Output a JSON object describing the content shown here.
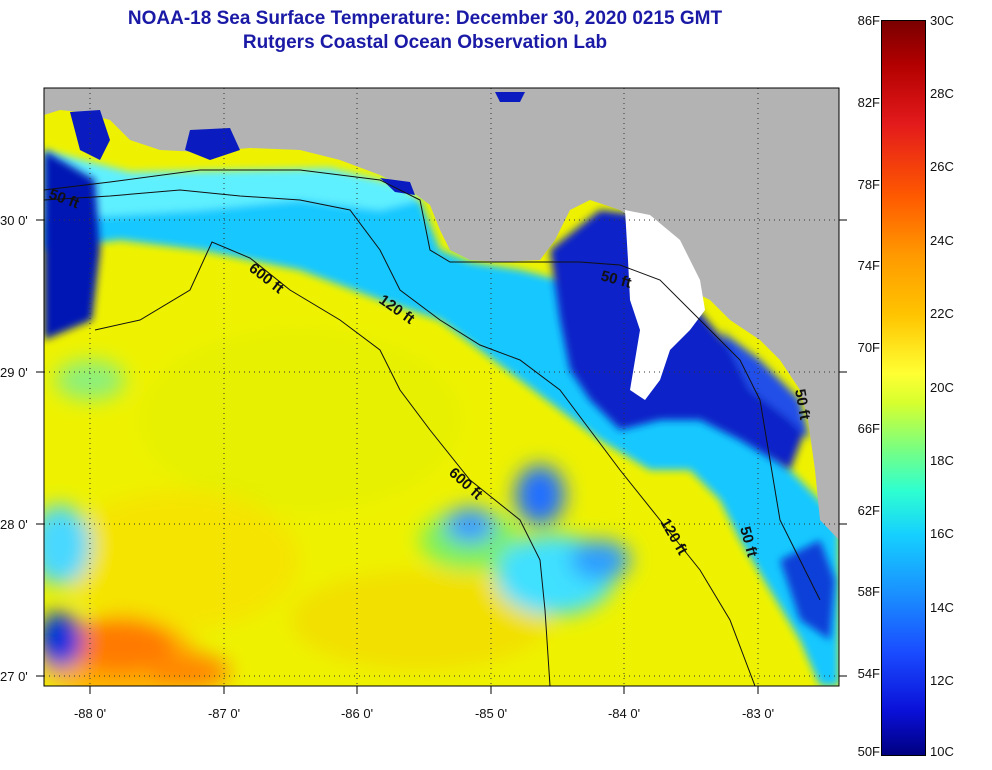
{
  "title": {
    "line1": "NOAA-18 Sea Surface Temperature:  December 30, 2020 0215 GMT",
    "line2": "Rutgers Coastal Ocean Observation Lab"
  },
  "map": {
    "lat_labels": [
      "30 0'",
      "29 0'",
      "28 0'",
      "27 0'"
    ],
    "lon_labels": [
      "-88 0'",
      "-87 0'",
      "-86 0'",
      "-85 0'",
      "-84 0'",
      "-83 0'"
    ],
    "contour_labels": [
      "50 ft",
      "600 ft",
      "120 ft",
      "50 ft",
      "600 ft",
      "120 ft",
      "50 ft",
      "50 ft"
    ],
    "colors": {
      "land": "#b3b3b3",
      "ocean_warm": "#f0f000",
      "shelf": "#19c8ff",
      "cold": "#0010b4",
      "cloud": "#ffffff",
      "hot": "#ff6a00"
    }
  },
  "colorbar": {
    "f_labels": [
      "86F",
      "82F",
      "78F",
      "74F",
      "70F",
      "66F",
      "62F",
      "58F",
      "54F",
      "50F"
    ],
    "c_labels": [
      "30C",
      "28C",
      "26C",
      "24C",
      "22C",
      "20C",
      "18C",
      "16C",
      "14C",
      "12C",
      "10C"
    ]
  }
}
